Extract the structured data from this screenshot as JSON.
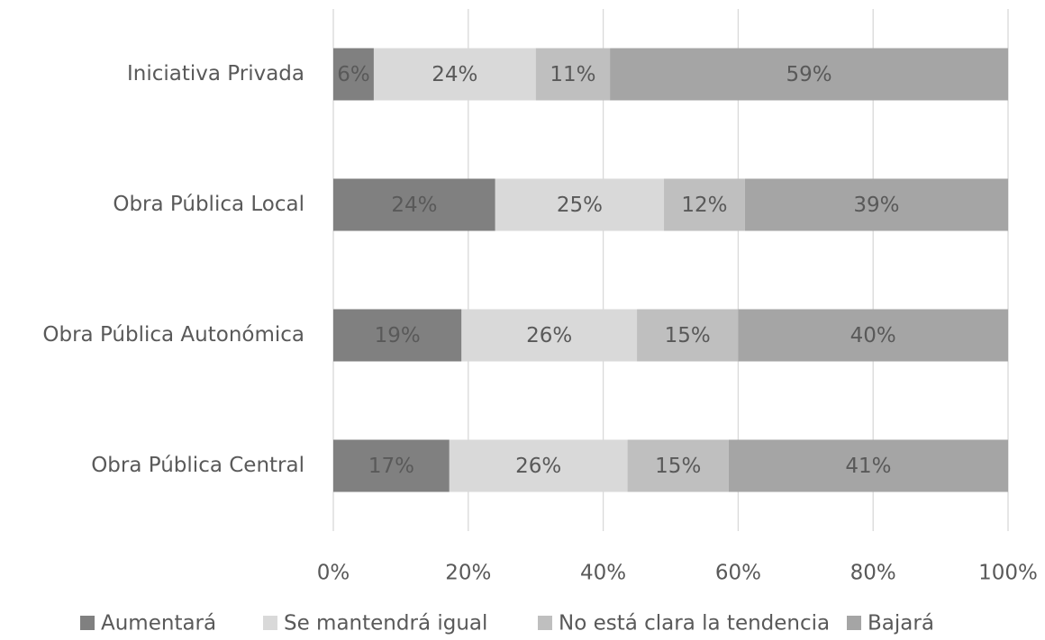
{
  "chart_data": {
    "type": "stacked-bar-horizontal",
    "categories": [
      "Iniciativa Privada",
      "Obra Pública Local",
      "Obra Pública Autonómica",
      "Obra Pública Central"
    ],
    "series": [
      {
        "name": "Aumentará",
        "color": "#808080",
        "values": [
          6,
          24,
          19,
          17.2
        ],
        "value_labels": [
          "6%",
          "24%",
          "19%",
          "17%"
        ]
      },
      {
        "name": "Se mantendrá igual",
        "color": "#d9d9d9",
        "values": [
          24,
          25,
          26,
          26.4
        ],
        "value_labels": [
          "24%",
          "25%",
          "26%",
          "26%"
        ]
      },
      {
        "name": "No está clara la tendencia",
        "color": "#bfbfbf",
        "values": [
          11,
          12,
          15,
          15.0
        ],
        "value_labels": [
          "11%",
          "12%",
          "15%",
          "15%"
        ]
      },
      {
        "name": "Bajará",
        "color": "#a5a5a5",
        "values": [
          59,
          39,
          40,
          41.4
        ],
        "value_labels": [
          "59%",
          "39%",
          "40%",
          "41%"
        ]
      }
    ],
    "xlim": [
      0,
      100
    ],
    "xticks": [
      {
        "value": 0,
        "label": "0%"
      },
      {
        "value": 20,
        "label": "20%"
      },
      {
        "value": 40,
        "label": "40%"
      },
      {
        "value": 60,
        "label": "60%"
      },
      {
        "value": 80,
        "label": "80%"
      },
      {
        "value": 100,
        "label": "100%"
      }
    ],
    "grid": true,
    "legend": "bottom"
  }
}
